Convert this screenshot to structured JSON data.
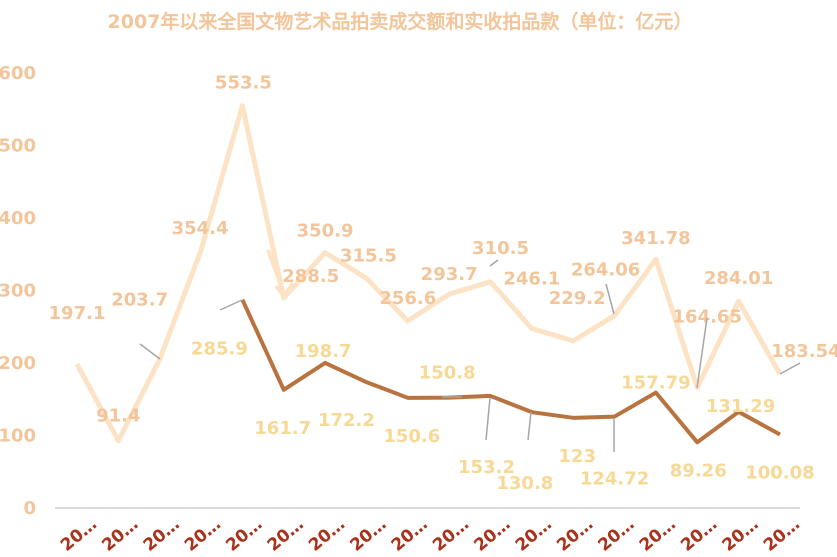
{
  "chart_data": {
    "type": "line",
    "title": "2007年以来全国文物艺术品拍卖成交额和实收拍品款（单位：亿元）",
    "x": [
      "20…",
      "20…",
      "20…",
      "20…",
      "20…",
      "20…",
      "20…",
      "20…",
      "20…",
      "20…",
      "20…",
      "20…",
      "20…",
      "20…",
      "20…",
      "20…",
      "20…",
      "20…"
    ],
    "ylim": [
      0,
      600
    ],
    "yticks": [
      0,
      100,
      200,
      300,
      400,
      500,
      600
    ],
    "grid": false,
    "series": [
      {
        "values": [
          197.1,
          91.4,
          203.7,
          354.4,
          553.5,
          288.5,
          350.9,
          315.5,
          256.6,
          293.7,
          310.5,
          246.1,
          229.2,
          264.06,
          341.78,
          164.65,
          284.01,
          183.54
        ],
        "color": "#fde3c6",
        "label_color": "#f2c59a"
      },
      {
        "values": [
          null,
          null,
          null,
          null,
          285.9,
          161.7,
          198.7,
          172.2,
          150.6,
          150.8,
          153.2,
          130.8,
          123.0,
          124.72,
          157.79,
          89.26,
          131.29,
          100.08
        ],
        "color": "#b8733f",
        "label_color": "#f7d995"
      }
    ],
    "colors": {
      "axis_labels": "#f2c59a",
      "x_labels": "#a8321c",
      "axis_line": "#d9d9d9",
      "leader": "#a6a6a6"
    }
  }
}
